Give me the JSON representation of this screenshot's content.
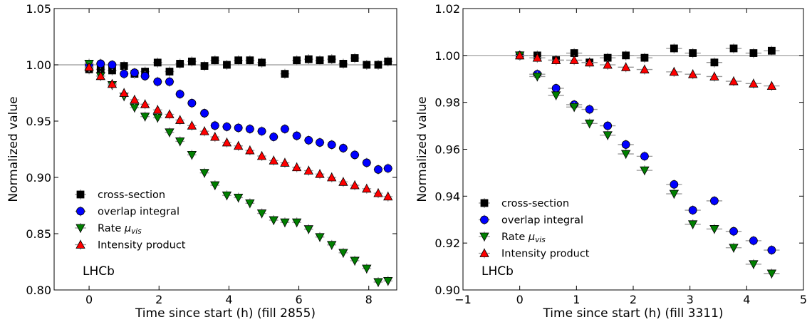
{
  "chart_data": [
    {
      "type": "scatter",
      "xlabel": "Time since start (h) (fill 2855)",
      "ylabel": "Normalized value",
      "xlim": [
        -1,
        8.8
      ],
      "ylim": [
        0.8,
        1.05
      ],
      "xticks": [
        0,
        2,
        4,
        6,
        8
      ],
      "yticks": [
        0.8,
        0.85,
        0.9,
        0.95,
        1.0,
        1.05
      ],
      "xtick_labels": [
        "0",
        "2",
        "4",
        "6",
        "8"
      ],
      "ytick_labels": [
        "0.80",
        "0.85",
        "0.90",
        "0.95",
        "1.00",
        "1.05"
      ],
      "reference_line": 1.0,
      "legend_position": "lower-left",
      "annotation": "LHCb",
      "x": [
        0.0,
        0.33,
        0.66,
        1.0,
        1.3,
        1.6,
        1.96,
        2.3,
        2.6,
        2.94,
        3.3,
        3.6,
        3.94,
        4.27,
        4.6,
        4.94,
        5.28,
        5.6,
        5.94,
        6.28,
        6.6,
        6.94,
        7.27,
        7.6,
        7.94,
        8.27,
        8.55
      ],
      "series": [
        {
          "name": "cross-section",
          "marker": "square",
          "color": "#000000",
          "x": [
            0.0,
            0.33,
            0.66,
            1.0,
            1.3,
            1.6,
            1.96,
            2.3,
            2.6,
            2.94,
            3.3,
            3.6,
            3.94,
            4.27,
            4.6,
            4.94,
            5.6,
            5.94,
            6.28,
            6.6,
            6.94,
            7.27,
            7.6,
            7.94,
            8.27,
            8.55
          ],
          "values": [
            0.996,
            0.996,
            0.995,
            0.999,
            0.992,
            0.994,
            1.002,
            0.994,
            1.001,
            1.003,
            0.999,
            1.004,
            1.0,
            1.004,
            1.004,
            1.002,
            0.992,
            1.004,
            1.005,
            1.004,
            1.005,
            1.001,
            1.006,
            1.0,
            1.0,
            1.003
          ]
        },
        {
          "name": "overlap integral",
          "marker": "circle",
          "color": "#0000ff",
          "x": [
            0.0,
            0.33,
            0.66,
            1.0,
            1.3,
            1.6,
            1.96,
            2.3,
            2.6,
            2.94,
            3.3,
            3.6,
            3.94,
            4.27,
            4.6,
            4.94,
            5.28,
            5.6,
            5.94,
            6.28,
            6.6,
            6.94,
            7.27,
            7.6,
            7.94,
            8.27,
            8.55
          ],
          "values": [
            1.0,
            1.001,
            1.0,
            0.992,
            0.993,
            0.99,
            0.985,
            0.985,
            0.974,
            0.966,
            0.957,
            0.946,
            0.945,
            0.944,
            0.943,
            0.941,
            0.936,
            0.943,
            0.937,
            0.933,
            0.931,
            0.929,
            0.926,
            0.92,
            0.913,
            0.907,
            0.908
          ]
        },
        {
          "name": "Rate $\\mu_{vis}$",
          "legend_label": "Rate",
          "legend_subscript": "vis",
          "legend_symbol": "μ",
          "marker": "triangle-down",
          "color": "#008000",
          "x": [
            0.0,
            0.33,
            0.66,
            1.0,
            1.3,
            1.6,
            1.96,
            2.3,
            2.6,
            2.94,
            3.3,
            3.6,
            3.94,
            4.27,
            4.6,
            4.94,
            5.28,
            5.6,
            5.94,
            6.28,
            6.6,
            6.94,
            7.27,
            7.6,
            7.94,
            8.27,
            8.55
          ],
          "values": [
            1.001,
            0.99,
            0.982,
            0.972,
            0.962,
            0.954,
            0.953,
            0.94,
            0.932,
            0.92,
            0.904,
            0.893,
            0.884,
            0.882,
            0.877,
            0.868,
            0.862,
            0.86,
            0.86,
            0.854,
            0.847,
            0.84,
            0.833,
            0.826,
            0.819,
            0.807,
            0.808
          ]
        },
        {
          "name": "Intensity product",
          "marker": "triangle-up",
          "color": "#ff0000",
          "x": [
            0.0,
            0.33,
            0.66,
            1.0,
            1.3,
            1.6,
            1.96,
            2.3,
            2.6,
            2.94,
            3.3,
            3.6,
            3.94,
            4.27,
            4.6,
            4.94,
            5.28,
            5.6,
            5.94,
            6.28,
            6.6,
            6.94,
            7.27,
            7.6,
            7.94,
            8.27,
            8.55
          ],
          "values": [
            0.998,
            0.99,
            0.983,
            0.975,
            0.969,
            0.965,
            0.96,
            0.956,
            0.951,
            0.946,
            0.941,
            0.936,
            0.931,
            0.928,
            0.924,
            0.919,
            0.915,
            0.913,
            0.909,
            0.906,
            0.903,
            0.9,
            0.896,
            0.893,
            0.89,
            0.886,
            0.883
          ]
        }
      ]
    },
    {
      "type": "scatter",
      "xlabel": "Time since start (h) (fill 3311)",
      "ylabel": "Normalized value",
      "xlim": [
        -1,
        5
      ],
      "ylim": [
        0.9,
        1.02
      ],
      "xticks": [
        -1,
        0,
        1,
        2,
        3,
        4,
        5
      ],
      "yticks": [
        0.9,
        0.92,
        0.94,
        0.96,
        0.98,
        1.0,
        1.02
      ],
      "xtick_labels": [
        "−1",
        "0",
        "1",
        "2",
        "3",
        "4",
        "5"
      ],
      "ytick_labels": [
        "0.90",
        "0.92",
        "0.94",
        "0.96",
        "0.98",
        "1.00",
        "1.02"
      ],
      "reference_line": 1.0,
      "legend_position": "lower-left",
      "annotation": "LHCb",
      "series": [
        {
          "name": "cross-section",
          "marker": "square",
          "color": "#000000",
          "x": [
            0.0,
            0.31,
            0.64,
            0.96,
            1.23,
            1.55,
            1.87,
            2.2,
            2.72,
            3.05,
            3.43,
            3.77,
            4.12,
            4.44
          ],
          "values": [
            1.0,
            1.0,
            0.998,
            1.001,
            0.997,
            0.999,
            1.0,
            0.999,
            1.003,
            1.001,
            0.997,
            1.003,
            1.001,
            1.002
          ]
        },
        {
          "name": "overlap integral",
          "marker": "circle",
          "color": "#0000ff",
          "x": [
            0.0,
            0.31,
            0.64,
            0.96,
            1.23,
            1.55,
            1.87,
            2.2,
            2.72,
            3.05,
            3.43,
            3.77,
            4.12,
            4.44
          ],
          "values": [
            1.0,
            0.992,
            0.986,
            0.979,
            0.977,
            0.97,
            0.962,
            0.957,
            0.945,
            0.934,
            0.938,
            0.925,
            0.921,
            0.917
          ]
        },
        {
          "name": "Rate $\\mu_{vis}$",
          "legend_label": "Rate",
          "legend_subscript": "vis",
          "legend_symbol": "μ",
          "marker": "triangle-down",
          "color": "#008000",
          "x": [
            0.0,
            0.31,
            0.64,
            0.96,
            1.23,
            1.55,
            1.87,
            2.2,
            2.72,
            3.05,
            3.43,
            3.77,
            4.12,
            4.44
          ],
          "values": [
            1.0,
            0.991,
            0.983,
            0.978,
            0.971,
            0.966,
            0.958,
            0.951,
            0.941,
            0.928,
            0.926,
            0.918,
            0.911,
            0.907
          ]
        },
        {
          "name": "Intensity product",
          "marker": "triangle-up",
          "color": "#ff0000",
          "x": [
            0.0,
            0.31,
            0.64,
            0.96,
            1.23,
            1.55,
            1.87,
            2.2,
            2.72,
            3.05,
            3.43,
            3.77,
            4.12,
            4.44
          ],
          "values": [
            1.0,
            0.999,
            0.998,
            0.998,
            0.997,
            0.996,
            0.995,
            0.994,
            0.993,
            0.992,
            0.991,
            0.989,
            0.988,
            0.987
          ]
        }
      ]
    }
  ]
}
